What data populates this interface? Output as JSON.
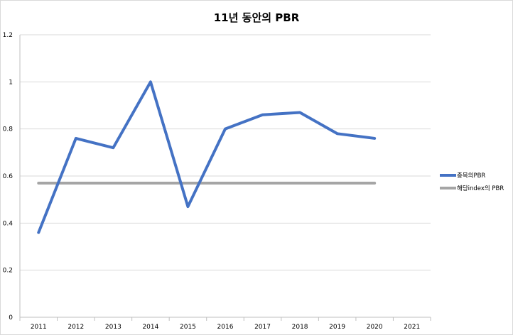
{
  "chart_data": {
    "type": "line",
    "title": "11년 동안의 PBR",
    "xlabel": "",
    "ylabel": "",
    "categories": [
      "2011",
      "2012",
      "2013",
      "2014",
      "2015",
      "2016",
      "2017",
      "2018",
      "2019",
      "2020",
      "2021"
    ],
    "yticks": [
      "0",
      "0.2",
      "0.4",
      "0.6",
      "0.8",
      "1",
      "1.2"
    ],
    "ylim": [
      0,
      1.2
    ],
    "grid": true,
    "legend_position": "right",
    "series": [
      {
        "name": "종목의PBR",
        "color": "#4472c4",
        "values": [
          0.36,
          0.76,
          0.72,
          1.0,
          0.47,
          0.8,
          0.86,
          0.87,
          0.78,
          0.76,
          null
        ]
      },
      {
        "name": "해당index의 PBR",
        "color": "#a5a5a5",
        "values": [
          0.57,
          0.57,
          0.57,
          0.57,
          0.57,
          0.57,
          0.57,
          0.57,
          0.57,
          0.57,
          null
        ]
      }
    ]
  }
}
